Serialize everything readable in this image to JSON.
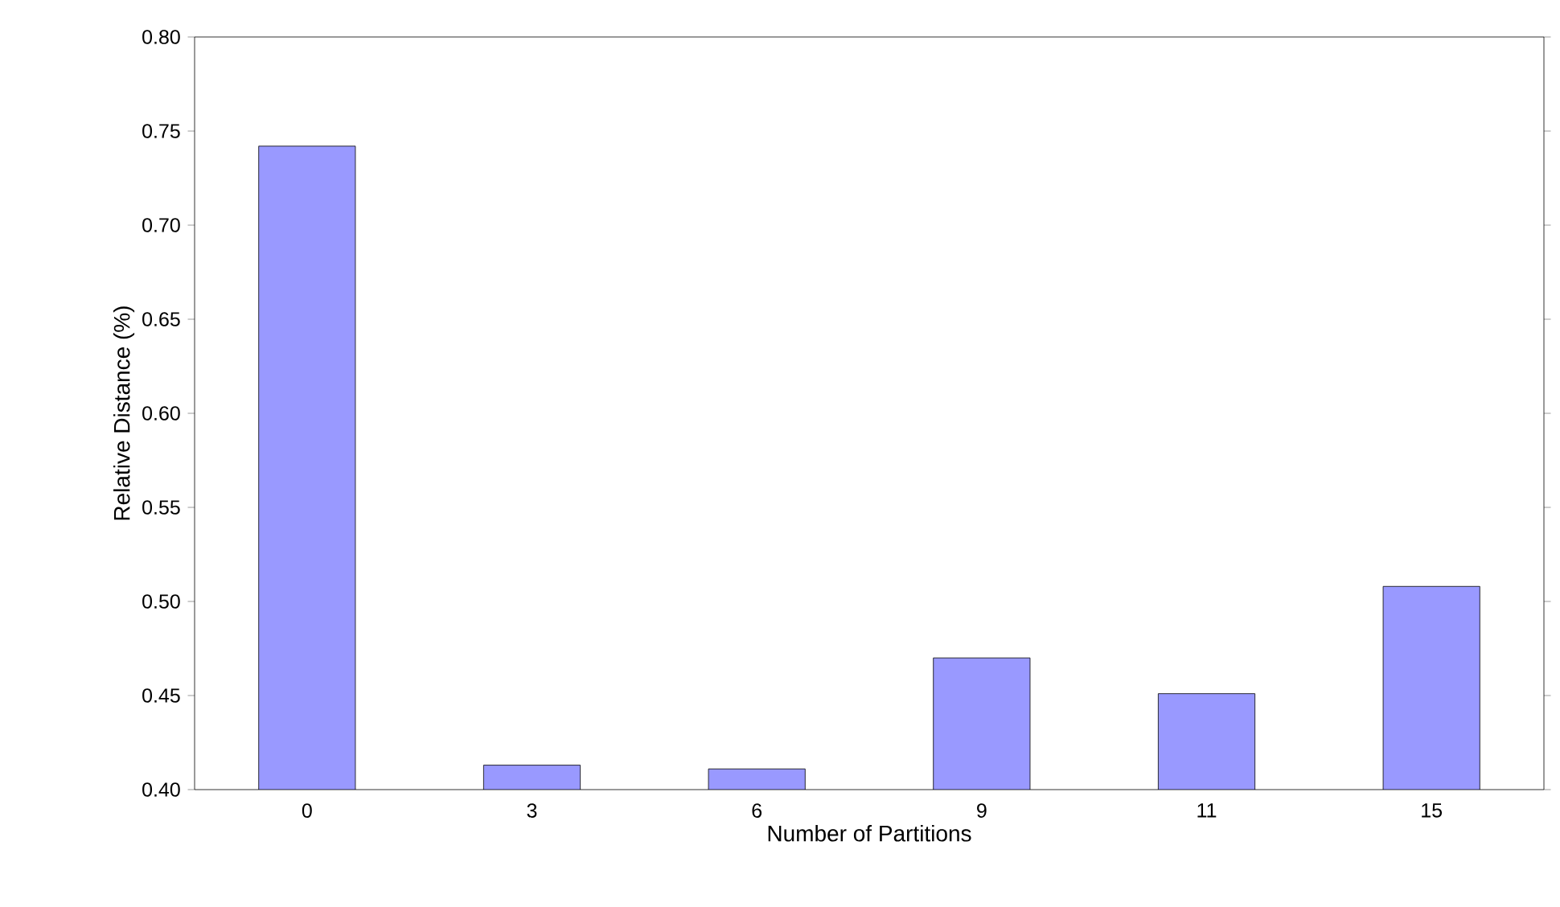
{
  "chart_data": {
    "type": "bar",
    "xlabel": "Number of Partitions",
    "ylabel": "Relative Distance (%)",
    "categories": [
      "0",
      "3",
      "6",
      "9",
      "11",
      "15"
    ],
    "values": [
      0.742,
      0.413,
      0.411,
      0.47,
      0.451,
      0.508
    ],
    "color": "#9999ff",
    "ylim": [
      0.4,
      0.8
    ],
    "yticks": [
      {
        "value": 0.4,
        "label": "0.40"
      },
      {
        "value": 0.45,
        "label": "0.45"
      },
      {
        "value": 0.5,
        "label": "0.50"
      },
      {
        "value": 0.55,
        "label": "0.55"
      },
      {
        "value": 0.6,
        "label": "0.60"
      },
      {
        "value": 0.65,
        "label": "0.65"
      },
      {
        "value": 0.7,
        "label": "0.70"
      },
      {
        "value": 0.75,
        "label": "0.75"
      },
      {
        "value": 0.8,
        "label": "0.80"
      }
    ],
    "grid": false
  }
}
